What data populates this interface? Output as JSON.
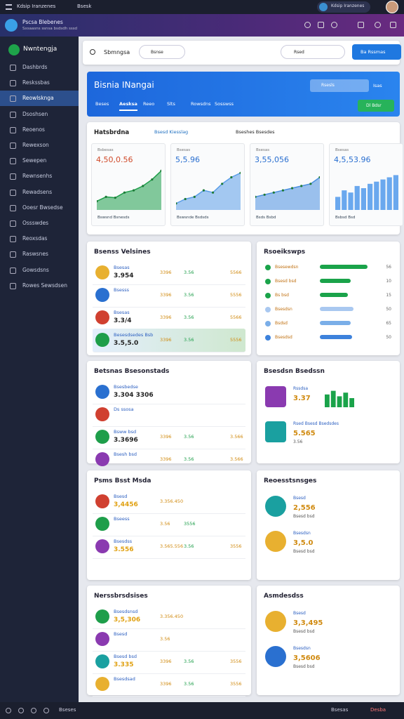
{
  "top_bar": {
    "title": "Kdsip Iranzenes",
    "search": "Bsesk"
  },
  "header": {
    "app_name": "Pscsa Blebenes",
    "app_sub": "Sxsaasns ssnsa bsdsdh sssd"
  },
  "sidebar": {
    "brand": "Nwntengja",
    "active": 2,
    "items": [
      "Dashbrds",
      "Reskssbas",
      "Reowlsknga",
      "Dsoshsen",
      "Reoenos",
      "Rewexson",
      "Sewepen",
      "Rewnsenhs",
      "Rewadsens",
      "Ooesr Bwsedse",
      "Ossswdes",
      "Reoxsdas",
      "Raswsnes",
      "Gowsdsns",
      "Rowes Sewsdsen"
    ]
  },
  "bottom_bar": {
    "left": "Bseses",
    "right1": "Bsesas",
    "right2": "Desba"
  },
  "toolbar": {
    "title": "Sbmngsa",
    "filter": "Bsnse",
    "search": "Rsed",
    "button": "Ba Rssmas"
  },
  "banner": {
    "title": "Bisnia INangai",
    "search": "Rsesls",
    "link": "Isas",
    "tabs": [
      "Beses",
      "Aesksa",
      "Reeo",
      "Slts",
      "Rowsdns",
      "Sosswss"
    ],
    "active_tab": 1,
    "button": "Dl Bdsr"
  },
  "analytics": {
    "title": "Hatsbrdna",
    "link": "Bsesd Kiesslag",
    "filter": "Bseshes Bsesdes",
    "cards": [
      {
        "label": "Bsbesas",
        "value": "4,50,0.56",
        "footer": "Bswsnd Bsnesds",
        "chart": {
          "type": "area",
          "color": "#1e9e4a",
          "ylim": [
            0,
            100
          ],
          "values": [
            20,
            30,
            28,
            40,
            45,
            55,
            70,
            90
          ]
        }
      },
      {
        "label": "Bsesas",
        "value": "5,5.96",
        "footer": "Bswsnde Bsdsds",
        "chart": {
          "type": "area",
          "color": "#5b9ee8",
          "ylim": [
            0,
            100
          ],
          "values": [
            15,
            25,
            30,
            45,
            40,
            60,
            75,
            85
          ]
        }
      },
      {
        "label": "Bsesas",
        "value": "3,55,056",
        "footer": "Bsds Bsbd",
        "chart": {
          "type": "area",
          "color": "#4a8fe0",
          "ylim": [
            0,
            100
          ],
          "values": [
            30,
            35,
            40,
            45,
            50,
            55,
            60,
            75
          ]
        }
      },
      {
        "label": "Bsesas",
        "value": "4,5,53.96",
        "footer": "Bsbsd Bsd",
        "chart": {
          "type": "bar",
          "color": "#6aa8ee",
          "ylim": [
            0,
            100
          ],
          "values": [
            30,
            45,
            40,
            55,
            50,
            60,
            65,
            70,
            75,
            80
          ]
        }
      }
    ]
  },
  "left_panels": [
    {
      "title": "Bsenss Velsines",
      "rows": [
        {
          "name": "Bsesas",
          "value": "3.954",
          "cols": [
            "3396",
            "3.56",
            "5566"
          ]
        },
        {
          "name": "Bsesss",
          "cols": [
            "3396",
            "3.56",
            "5556"
          ]
        },
        {
          "name": "Bsesas",
          "value": "3.3/4",
          "cols": [
            "3396",
            "3.56",
            "5566"
          ]
        },
        {
          "name": "Besesdsedes Bsb",
          "value": "3.5,5.0",
          "cols": [
            "3396",
            "3.56",
            "5556"
          ],
          "highlight": true
        }
      ]
    },
    {
      "title": "Betsnas Bsesonstads",
      "rows": [
        {
          "name": "Bsesbedse",
          "value": "3.304 3306"
        },
        {
          "name": "Ds ssosa"
        },
        {
          "name": "Bsww bsd",
          "value": "3.3696",
          "cols": [
            "3396",
            "3.56",
            "3.566"
          ]
        },
        {
          "name": "Bsesh bsd",
          "cols": [
            "3396",
            "3.56",
            "3.566"
          ]
        }
      ]
    },
    {
      "title": "Psms Bsst Msda",
      "rows": [
        {
          "name": "Bsesd",
          "value": "3,4456",
          "cols": [
            "3.356.450"
          ]
        },
        {
          "name": "Bseess",
          "cols": [
            "3.56",
            "3556"
          ]
        },
        {
          "name": "Bsesdss",
          "value": "3.556",
          "cols": [
            "3.565.556",
            "3.56",
            "3556"
          ]
        }
      ]
    },
    {
      "title": "Nerssbrsdsises",
      "rows": [
        {
          "name": "Bsesdsnsd",
          "value": "3,5,306",
          "cols": [
            "3.356.450"
          ]
        },
        {
          "name": "Bsesd",
          "cols": [
            "3.56"
          ]
        },
        {
          "name": "Bsesd bsd",
          "value": "3.335",
          "cols": [
            "3396",
            "3.56",
            "3556"
          ]
        },
        {
          "name": "Bsesdsad",
          "cols": [
            "3396",
            "3.56",
            "3556"
          ]
        }
      ]
    }
  ],
  "right_panels": [
    {
      "title": "Rsoeikswps",
      "rows": [
        {
          "name": "Bsesewdsn",
          "value": "56",
          "bar": 85,
          "color": "#1aa34a"
        },
        {
          "name": "Bsesd bsd",
          "value": "10",
          "bar": 55,
          "color": "#1aa34a"
        },
        {
          "name": "Bs bsd",
          "value": "15",
          "bar": 50,
          "color": "#1aa34a"
        },
        {
          "name": "Bsesdsn",
          "value": "50",
          "bar": 60,
          "color": "#a9c8f0"
        },
        {
          "name": "Bsdsd",
          "value": "65",
          "bar": 55,
          "color": "#7aaee8"
        },
        {
          "name": "Bsesdsd",
          "value": "50",
          "bar": 58,
          "color": "#3d82dc"
        }
      ]
    },
    {
      "title": "Bsesdsn Bsedssn",
      "rows": [
        {
          "name": "Rssdsa",
          "value": "3.37",
          "mini": {
            "color": "#1aa34a",
            "ylim": [
              0,
              100
            ],
            "values": [
              70,
              90,
              60,
              80,
              50
            ]
          }
        },
        {
          "name": "Rsed Bsesd Bsedsdes",
          "value": "5.565",
          "cols": [
            "3.56"
          ]
        }
      ]
    },
    {
      "title": "Reoesstsnsges",
      "rows": [
        {
          "name": "Bsesd",
          "value": "2,556",
          "cols": [
            "Bsesd bsd"
          ]
        },
        {
          "name": "Bsesdsn",
          "value": "3,5.0",
          "cols": [
            "Bsesd bsd"
          ]
        }
      ]
    },
    {
      "title": "Asmdesdss",
      "rows": [
        {
          "name": "Bsesd",
          "value": "3,3,495",
          "cols": [
            "Bsesd bsd"
          ]
        },
        {
          "name": "Bsesdsn",
          "value": "3,5606",
          "cols": [
            "Bsesd bsd"
          ]
        }
      ]
    }
  ]
}
